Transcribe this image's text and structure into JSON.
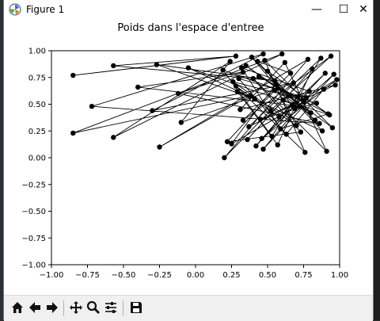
{
  "window": {
    "title": "Figure 1",
    "minimize_glyph": "—",
    "maximize_glyph": "☐",
    "close_glyph": "✕"
  },
  "toolbar": {
    "buttons": [
      "home-icon",
      "back-icon",
      "forward-icon",
      "pan-icon",
      "zoom-icon",
      "configure-subplots-icon",
      "save-icon"
    ]
  },
  "colors": {
    "points": "#000000",
    "lines": "#000000",
    "axes": "#000000"
  },
  "chart_data": {
    "type": "line",
    "title": "Poids dans l'espace d'entree",
    "xlabel": "",
    "ylabel": "",
    "xlim": [
      -1.0,
      1.0
    ],
    "ylim": [
      -1.0,
      1.0
    ],
    "x_ticks": [
      "−1.00",
      "−0.75",
      "−0.50",
      "−0.25",
      "0.00",
      "0.25",
      "0.50",
      "0.75",
      "1.00"
    ],
    "y_ticks": [
      "−1.00",
      "−0.75",
      "−0.50",
      "−0.25",
      "0.00",
      "0.25",
      "0.50",
      "0.75",
      "1.00"
    ],
    "grid": false,
    "marker": "o",
    "series": [
      {
        "x": [
          -0.85,
          0.28,
          -0.57,
          0.55,
          -0.27,
          0.41,
          -0.05,
          0.72,
          -0.4,
          0.33,
          -0.12,
          0.86,
          -0.72,
          0.47,
          -0.3,
          0.68,
          -0.1,
          0.24,
          -0.57,
          0.6,
          -0.85,
          0.38,
          -0.25,
          0.78,
          0.2,
          0.52,
          0.94,
          0.33,
          0.66,
          0.43,
          0.88,
          0.29,
          0.57,
          0.81,
          0.36,
          0.61,
          0.93,
          0.5,
          0.7,
          0.26,
          0.84,
          0.45,
          0.97,
          0.31,
          0.62,
          0.91,
          0.4,
          0.73,
          0.22,
          0.55,
          0.8,
          0.35,
          0.65,
          0.95,
          0.48,
          0.76,
          0.28,
          0.58,
          0.9,
          0.42,
          0.71,
          0.19,
          0.53,
          0.87,
          0.37,
          0.67,
          0.98,
          0.46,
          0.79,
          0.32,
          0.59,
          0.92,
          0.44,
          0.75,
          0.25,
          0.56,
          0.83,
          0.39,
          0.69,
          0.96,
          0.47,
          0.77,
          0.3,
          0.63,
          0.89
        ],
        "y": [
          0.77,
          0.95,
          0.86,
          0.72,
          0.87,
          0.55,
          0.84,
          0.48,
          0.66,
          0.8,
          0.6,
          0.32,
          0.48,
          0.97,
          0.44,
          0.7,
          0.33,
          0.9,
          0.19,
          0.97,
          0.23,
          0.58,
          0.1,
          0.92,
          0.0,
          0.44,
          0.95,
          0.35,
          0.79,
          0.9,
          0.25,
          0.62,
          0.12,
          0.83,
          0.17,
          0.54,
          0.4,
          0.81,
          0.3,
          0.71,
          0.51,
          0.36,
          0.68,
          0.45,
          0.89,
          0.06,
          0.74,
          0.24,
          0.15,
          0.63,
          0.42,
          0.86,
          0.58,
          0.28,
          0.91,
          0.05,
          0.67,
          0.38,
          0.79,
          0.11,
          0.57,
          0.82,
          0.2,
          0.93,
          0.29,
          0.49,
          0.73,
          0.18,
          0.62,
          0.84,
          0.27,
          0.41,
          0.76,
          0.52,
          0.13,
          0.69,
          0.35,
          0.94,
          0.46,
          0.78,
          0.08,
          0.56,
          0.74,
          0.22,
          0.64
        ]
      }
    ]
  }
}
